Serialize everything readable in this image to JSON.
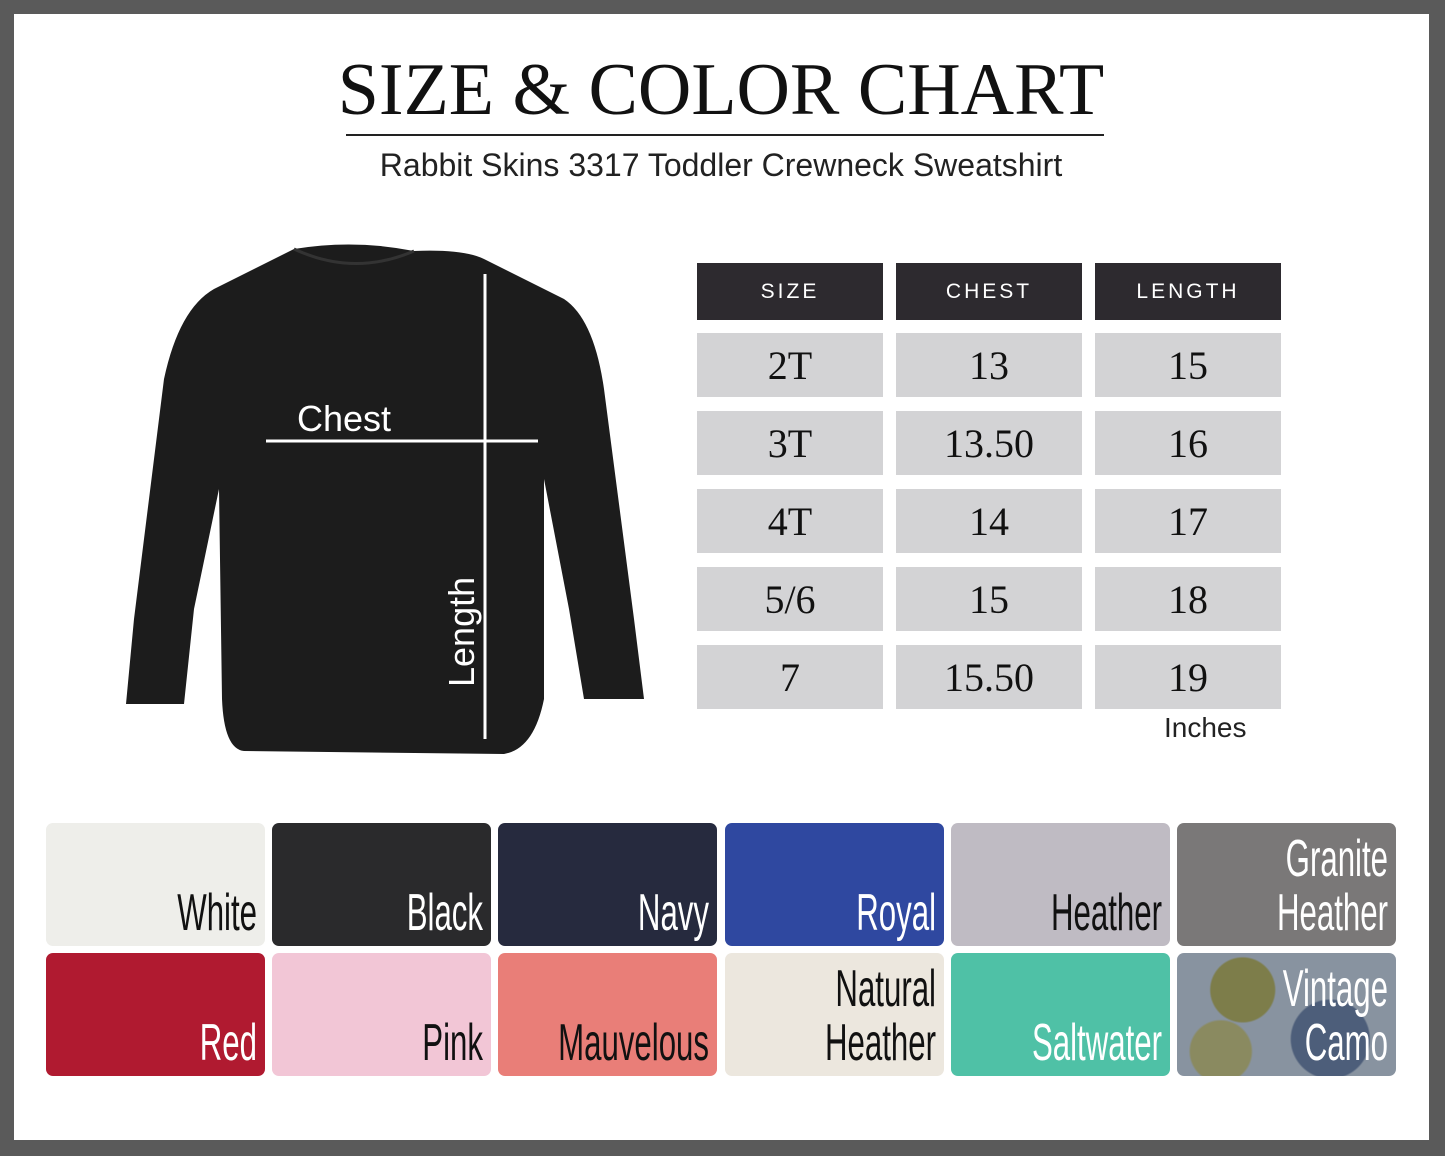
{
  "title": "SIZE & COLOR CHART",
  "subtitle": "Rabbit Skins 3317 Toddler Crewneck Sweatshirt",
  "diagram": {
    "chest_label": "Chest",
    "length_label": "Length"
  },
  "table": {
    "headers": [
      "SIZE",
      "CHEST",
      "LENGTH"
    ],
    "rows": [
      [
        "2T",
        "13",
        "15"
      ],
      [
        "3T",
        "13.50",
        "16"
      ],
      [
        "4T",
        "14",
        "17"
      ],
      [
        "5/6",
        "15",
        "18"
      ],
      [
        "7",
        "15.50",
        "19"
      ]
    ],
    "unit": "Inches"
  },
  "colors": [
    {
      "name": "White",
      "hex": "#eeeeea",
      "text": "#111"
    },
    {
      "name": "Black",
      "hex": "#2a2a2c",
      "text": "#fff"
    },
    {
      "name": "Navy",
      "hex": "#262a3e",
      "text": "#fff"
    },
    {
      "name": "Royal",
      "hex": "#2f48a0",
      "text": "#fff"
    },
    {
      "name": "Heather",
      "hex": "#bfbbc3",
      "text": "#111"
    },
    {
      "name": "Granite\nHeather",
      "hex": "#7a7878",
      "text": "#fff"
    },
    {
      "name": "Red",
      "hex": "#b01a30",
      "text": "#fff"
    },
    {
      "name": "Pink",
      "hex": "#f2c6d6",
      "text": "#111"
    },
    {
      "name": "Mauvelous",
      "hex": "#e97e78",
      "text": "#111"
    },
    {
      "name": "Natural\nHeather",
      "hex": "#ece7de",
      "text": "#111"
    },
    {
      "name": "Saltwater",
      "hex": "#4fc1a6",
      "text": "#fff"
    },
    {
      "name": "Vintage\nCamo",
      "hex": "#6f7a80",
      "text": "#fff"
    }
  ]
}
